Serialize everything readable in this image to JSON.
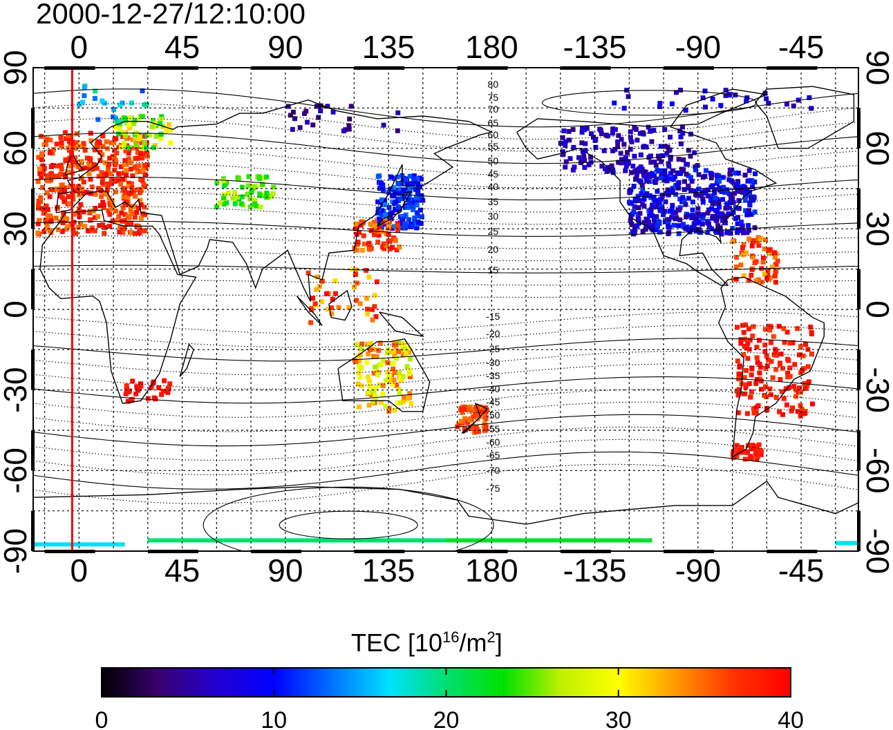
{
  "title": "2000-12-27/12:10:00",
  "map": {
    "lon_ticks_bottom": [
      "0",
      "45",
      "90",
      "135",
      "180",
      "-135",
      "-90",
      "-45"
    ],
    "lon_ticks_top": [
      "0",
      "45",
      "90",
      "135",
      "180",
      "-135",
      "-90",
      "-45"
    ],
    "lat_ticks_left": [
      "90",
      "60",
      "30",
      "0",
      "-30",
      "-60",
      "-90"
    ],
    "lat_ticks_right": [
      "90",
      "60",
      "30",
      "0",
      "-30",
      "-60",
      "-90"
    ],
    "contour_labels_north": [
      "80",
      "75",
      "70",
      "65",
      "60",
      "55",
      "50",
      "45",
      "40",
      "35",
      "30",
      "25",
      "20",
      "15"
    ],
    "contour_labels_south": [
      "-15",
      "-20",
      "-25",
      "-30",
      "-35",
      "-40",
      "-45",
      "-50",
      "-55",
      "-60",
      "-65",
      "-70",
      "-75"
    ],
    "lon_range": [
      -20,
      340
    ],
    "lat_range": [
      -90,
      90
    ],
    "grid": true,
    "marker_longitude": -3,
    "marker_color": "#ff0000"
  },
  "colorbar": {
    "label_prefix": "TEC  [10",
    "label_exp1": "16",
    "label_mid": "/m",
    "label_exp2": "2",
    "label_suffix": "]",
    "ticks": [
      "0",
      "10",
      "20",
      "30",
      "40"
    ],
    "range": [
      0,
      40
    ],
    "colors": [
      "#000000",
      "#3a006f",
      "#2200d0",
      "#0000ff",
      "#0070ff",
      "#00e0ff",
      "#00e070",
      "#00e000",
      "#c0f000",
      "#ffff00",
      "#ff9900",
      "#ff3300",
      "#ff0000"
    ]
  }
}
